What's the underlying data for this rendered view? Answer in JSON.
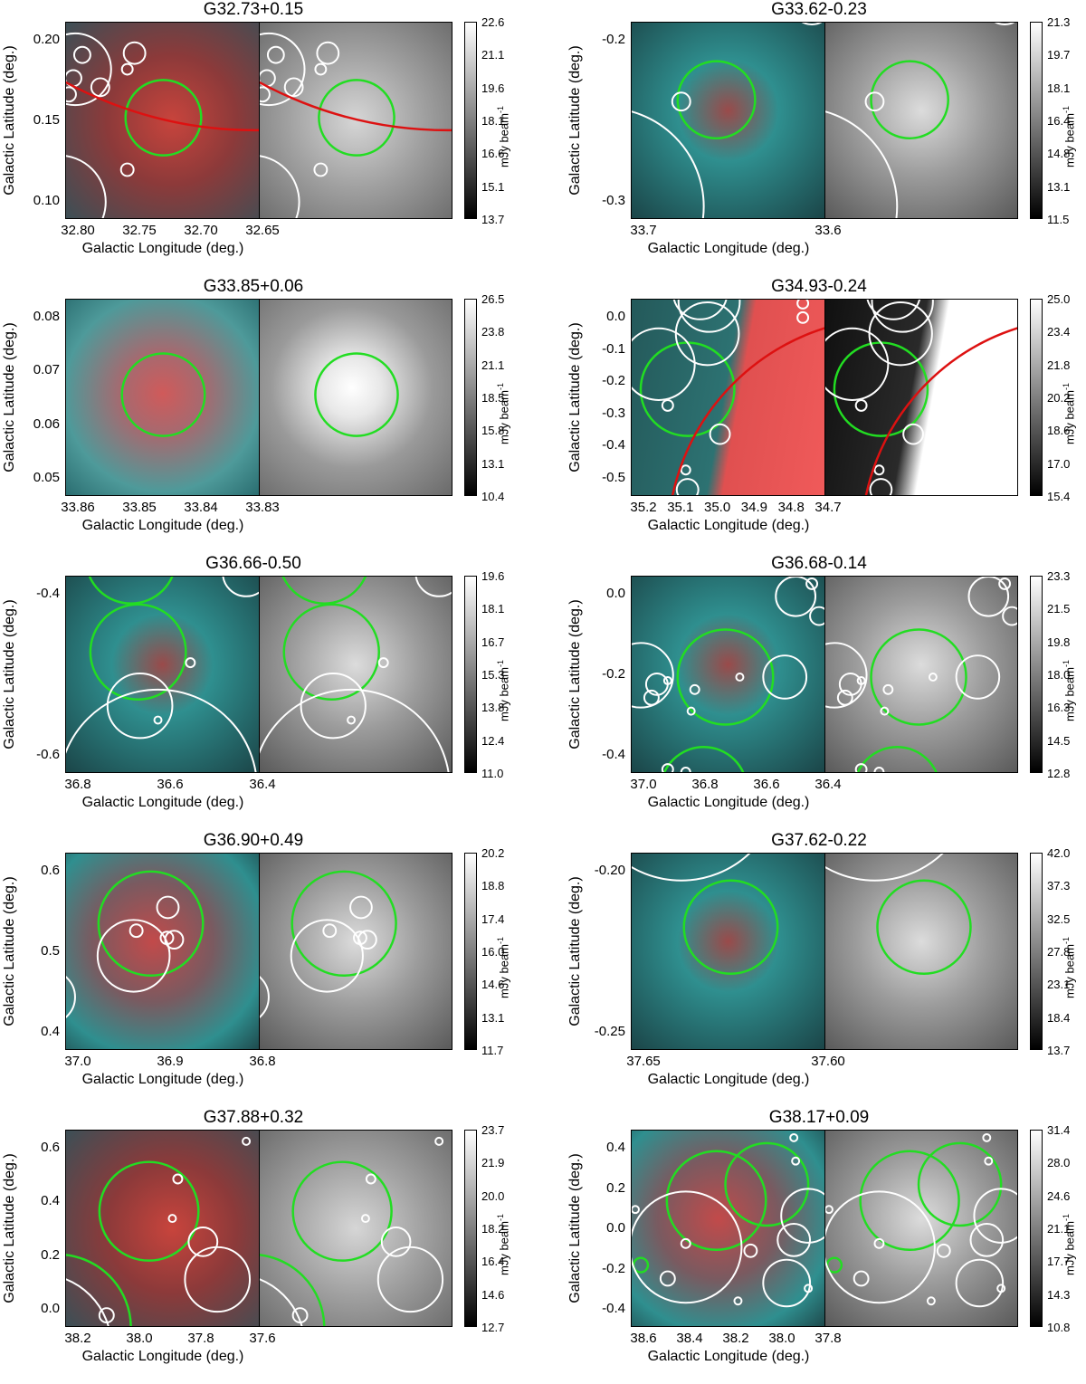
{
  "figure": {
    "x_axis_label": "Galactic Longitude (deg.)",
    "y_axis_label": "Galactic Latitude (deg.)",
    "colorbar_unit": "mJy beam",
    "colorbar_unit_exponent": "-1",
    "panels": [
      {
        "title": "G32.73+0.15",
        "lon_ticks": [
          "32.80",
          "32.75",
          "32.70",
          "32.65"
        ],
        "lat_ticks": [
          "0.20",
          "0.15",
          "0.10"
        ],
        "colorbar_ticks": [
          "22.6",
          "21.1",
          "19.6",
          "18.1",
          "16.6",
          "15.1",
          "13.7"
        ]
      },
      {
        "title": "G33.62-0.23",
        "lon_ticks": [
          "33.7",
          "33.6"
        ],
        "lat_ticks": [
          "-0.2",
          "-0.3"
        ],
        "colorbar_ticks": [
          "21.3",
          "19.7",
          "18.1",
          "16.4",
          "14.8",
          "13.1",
          "11.5"
        ]
      },
      {
        "title": "G33.85+0.06",
        "lon_ticks": [
          "33.86",
          "33.85",
          "33.84",
          "33.83"
        ],
        "lat_ticks": [
          "0.08",
          "0.07",
          "0.06",
          "0.05"
        ],
        "colorbar_ticks": [
          "26.5",
          "23.8",
          "21.1",
          "18.5",
          "15.8",
          "13.1",
          "10.4"
        ]
      },
      {
        "title": "G34.93-0.24",
        "lon_ticks": [
          "35.2",
          "35.1",
          "35.0",
          "34.9",
          "34.8",
          "34.7"
        ],
        "lat_ticks": [
          "0.0",
          "-0.1",
          "-0.2",
          "-0.3",
          "-0.4",
          "-0.5"
        ],
        "colorbar_ticks": [
          "25.0",
          "23.4",
          "21.8",
          "20.2",
          "18.6",
          "17.0",
          "15.4"
        ]
      },
      {
        "title": "G36.66-0.50",
        "lon_ticks": [
          "36.8",
          "36.6",
          "36.4"
        ],
        "lat_ticks": [
          "-0.4",
          "-0.6"
        ],
        "colorbar_ticks": [
          "19.6",
          "18.1",
          "16.7",
          "15.3",
          "13.8",
          "12.4",
          "11.0"
        ]
      },
      {
        "title": "G36.68-0.14",
        "lon_ticks": [
          "37.0",
          "36.8",
          "36.6",
          "36.4"
        ],
        "lat_ticks": [
          "0.0",
          "-0.2",
          "-0.4"
        ],
        "colorbar_ticks": [
          "23.3",
          "21.5",
          "19.8",
          "18.0",
          "16.3",
          "14.5",
          "12.8"
        ]
      },
      {
        "title": "G36.90+0.49",
        "lon_ticks": [
          "37.0",
          "36.9",
          "36.8"
        ],
        "lat_ticks": [
          "0.6",
          "0.5",
          "0.4"
        ],
        "colorbar_ticks": [
          "20.2",
          "18.8",
          "17.4",
          "16.0",
          "14.6",
          "13.1",
          "11.7"
        ]
      },
      {
        "title": "G37.62-0.22",
        "lon_ticks": [
          "37.65",
          "37.60"
        ],
        "lat_ticks": [
          "-0.20",
          "-0.25"
        ],
        "colorbar_ticks": [
          "42.0",
          "37.3",
          "32.5",
          "27.8",
          "23.1",
          "18.4",
          "13.7"
        ]
      },
      {
        "title": "G37.88+0.32",
        "lon_ticks": [
          "38.2",
          "38.0",
          "37.8",
          "37.6"
        ],
        "lat_ticks": [
          "0.6",
          "0.4",
          "0.2",
          "0.0"
        ],
        "colorbar_ticks": [
          "23.7",
          "21.9",
          "20.0",
          "18.2",
          "16.4",
          "14.6",
          "12.7"
        ]
      },
      {
        "title": "G38.17+0.09",
        "lon_ticks": [
          "38.6",
          "38.4",
          "38.2",
          "38.0",
          "37.8"
        ],
        "lat_ticks": [
          "0.4",
          "0.2",
          "0.0",
          "-0.2",
          "-0.4"
        ],
        "colorbar_ticks": [
          "31.4",
          "28.0",
          "24.6",
          "21.1",
          "17.7",
          "14.3",
          "10.8"
        ]
      }
    ]
  },
  "colors": {
    "source_circle": "#22dd22",
    "catalog_circle": "#ffffff",
    "snr_arc": "#dd1111",
    "rgb_red": "#c8443c",
    "rgb_cyan": "#2f8f8f"
  }
}
